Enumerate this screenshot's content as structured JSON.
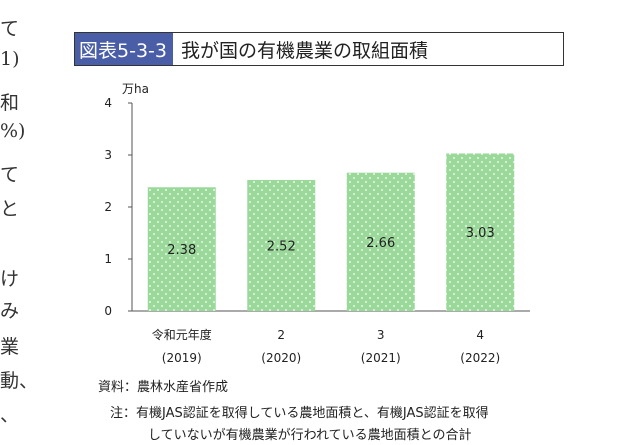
{
  "side_text": [
    "て",
    "1)",
    "和",
    "%)",
    "て",
    "と",
    "け",
    "み",
    "業",
    "動、",
    "、"
  ],
  "figure": {
    "number": "図表5-3-3",
    "title": "我が国の有機農業の取組面積"
  },
  "colors": {
    "bar": "#9bd99b",
    "title_tag": "#4a5ea8",
    "axis": "#555555"
  },
  "chart_data": {
    "type": "bar",
    "title": "我が国の有機農業の取組面積",
    "ylabel": "万ha",
    "xlabel": "",
    "ylim": [
      0,
      4
    ],
    "yticks": [
      0,
      1,
      2,
      3,
      4
    ],
    "grid": false,
    "categories": [
      "令和元年度",
      "2",
      "3",
      "4"
    ],
    "category_sublabels": [
      "(2019)",
      "(2020)",
      "(2021)",
      "(2022)"
    ],
    "values": [
      2.38,
      2.52,
      2.66,
      3.03
    ],
    "value_labels": [
      "2.38",
      "2.52",
      "2.66",
      "3.03"
    ]
  },
  "notes": {
    "source": "資料：農林水産省作成",
    "note_line1": "注：有機JAS認証を取得している農地面積と、有機JAS認証を取得",
    "note_line2": "していないが有機農業が行われている農地面積との合計"
  }
}
